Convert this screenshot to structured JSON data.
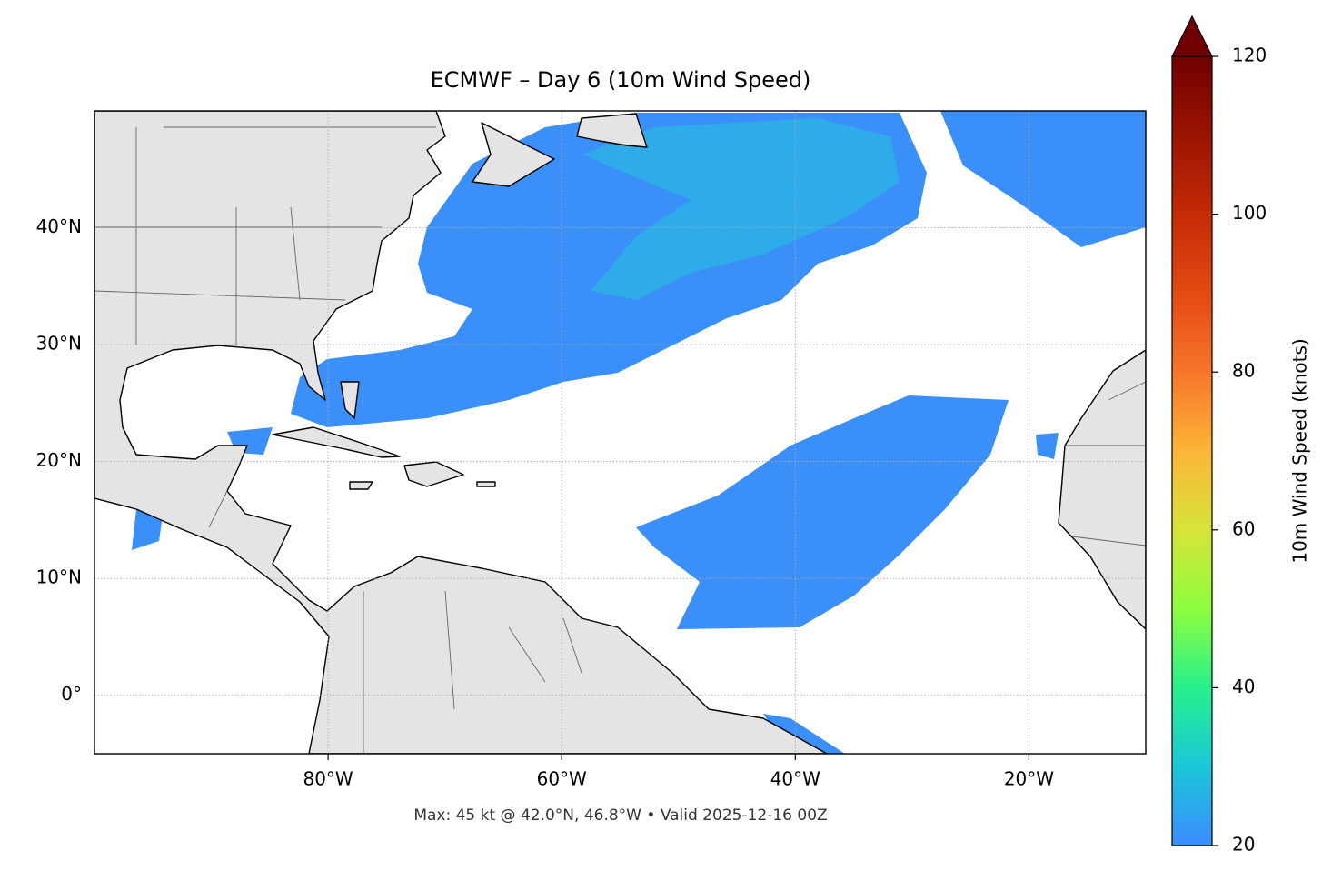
{
  "chart_data": {
    "type": "map",
    "title": "ECMWF – Day 6 (10m Wind Speed)",
    "subtitle": "Max: 45 kt @ 42.0°N, 46.8°W • Valid 2025-12-16 00Z",
    "xlim": [
      -100,
      -10
    ],
    "ylim": [
      -5,
      50
    ],
    "xticks": [
      {
        "value": -80,
        "label": "80°W"
      },
      {
        "value": -60,
        "label": "60°W"
      },
      {
        "value": -40,
        "label": "40°W"
      },
      {
        "value": -20,
        "label": "20°W"
      }
    ],
    "yticks": [
      {
        "value": 0,
        "label": "0°"
      },
      {
        "value": 10,
        "label": "10°N"
      },
      {
        "value": 20,
        "label": "20°N"
      },
      {
        "value": 30,
        "label": "30°N"
      },
      {
        "value": 40,
        "label": "40°N"
      }
    ],
    "grid": true,
    "colorbar": {
      "label": "10m Wind Speed (knots)",
      "lim": [
        20,
        120
      ],
      "ticks": [
        20,
        40,
        60,
        80,
        100,
        120
      ],
      "extend": "max",
      "colors": [
        "#3b8cff",
        "#1ac7d8",
        "#27f08c",
        "#8efe3e",
        "#d6e43a",
        "#fbb537",
        "#f7752a",
        "#e44a12",
        "#c42b05",
        "#9b1402",
        "#700000"
      ]
    }
  }
}
